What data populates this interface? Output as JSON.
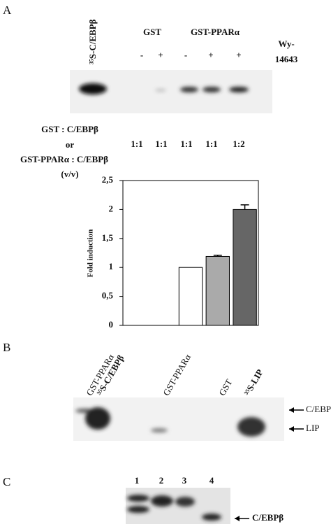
{
  "panel_a": {
    "letter": "A",
    "lane_label": "³⁵S-C/EBPβ",
    "gst": "GST",
    "gst_ppar": "GST-PPARα",
    "signs": [
      "-",
      "+",
      "-",
      "+",
      "+"
    ],
    "wy": [
      "Wy-",
      "14643"
    ],
    "ratio_legend": [
      "GST : C/EBPβ",
      "or",
      "GST-PPARα : C/EBPβ",
      "(v/v)"
    ],
    "ratios": [
      "1:1",
      "1:1",
      "1:1",
      "1:1",
      "1:2"
    ]
  },
  "chart_data": {
    "type": "bar",
    "y_label": "Fold induction",
    "categories": [
      null,
      null,
      null,
      null,
      null
    ],
    "values": [
      null,
      null,
      1,
      1.19,
      2
    ],
    "errors": [
      null,
      null,
      0,
      0.02,
      0.08
    ],
    "colors": [
      "#ffffff",
      "#ffffff",
      "#ffffff",
      "#aaaaaa",
      "#666666"
    ],
    "ylim": [
      0,
      2.5
    ],
    "yticks": [
      0,
      {
        "value": 0.5,
        "label": "0,5"
      },
      1,
      {
        "value": 1.5,
        "label": "1,5"
      },
      2,
      {
        "value": 2.5,
        "label": "2,5"
      }
    ]
  },
  "panel_b": {
    "letter": "B",
    "lanes": [
      "GST-PPARα",
      "³⁵S-C/EBPβ",
      "GST-PPARα",
      "GST",
      "³⁵S-LIP"
    ],
    "arrows": [
      "C/EBPβ",
      "LIP"
    ]
  },
  "panel_c": {
    "letter": "C",
    "lanes": [
      "1",
      "2",
      "3",
      "4"
    ],
    "arrow": "C/EBPβ"
  }
}
